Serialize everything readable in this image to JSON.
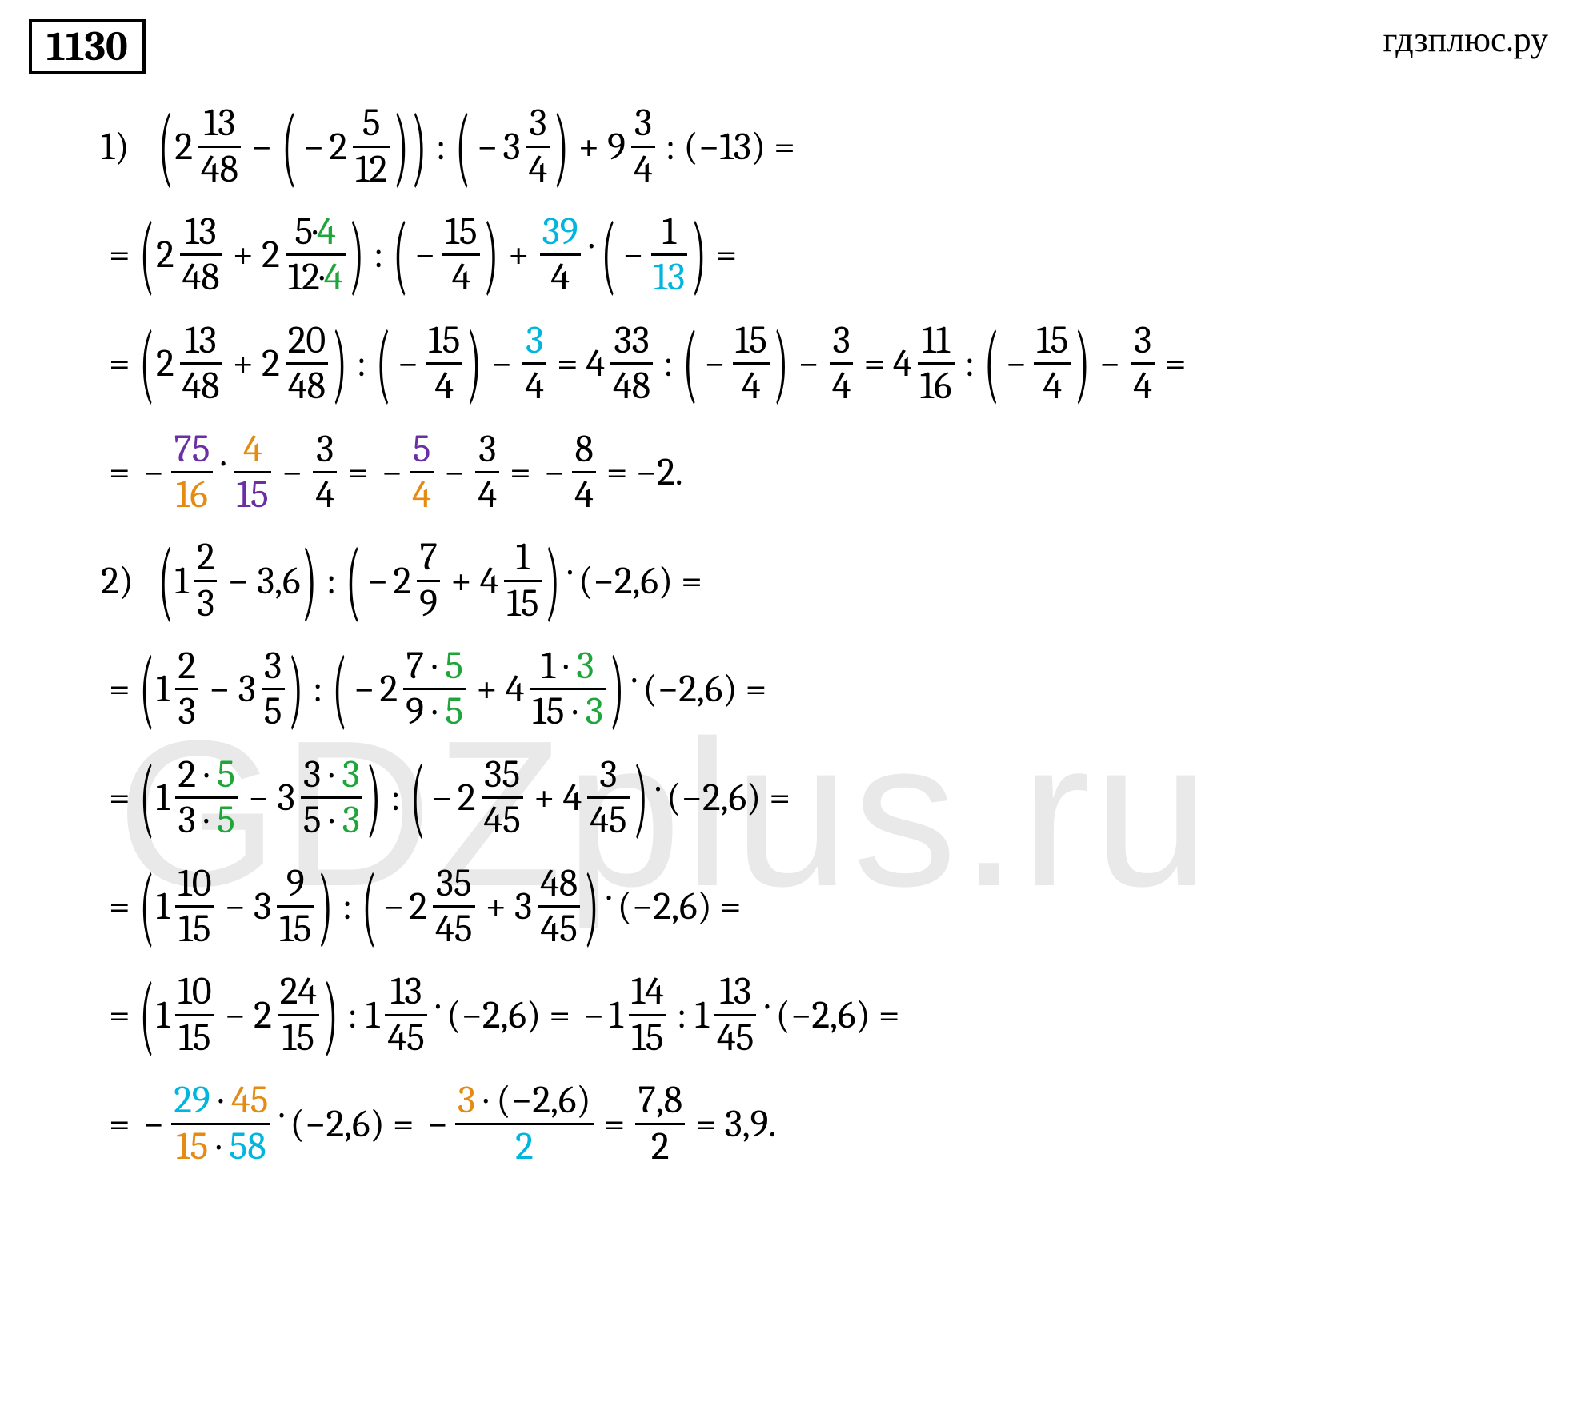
{
  "header": {
    "problem_number": "1130",
    "site": "гдзплюс.ру"
  },
  "watermark": "GDZplus.ru",
  "colors": {
    "green": "#1fa63a",
    "cyan": "#00b6de",
    "orange": "#e58a12",
    "purple": "#6a2fa4",
    "text": "#000000",
    "bg": "#ffffff"
  },
  "font": {
    "family": "Cambria / Georgia serif",
    "base_size_pt": 36
  },
  "items": {
    "p1": {
      "label": "1)",
      "l1": {
        "mix_a_whole": "2",
        "mix_a_num": "13",
        "mix_a_den": "48",
        "mix_b_whole": "2",
        "mix_b_num": "5",
        "mix_b_den": "12",
        "mix_c_whole": "3",
        "mix_c_num": "3",
        "mix_c_den": "4",
        "mix_d_whole": "9",
        "mix_d_num": "3",
        "mix_d_den": "4",
        "k": "(−13)"
      },
      "l2": {
        "mix_a_whole": "2",
        "mix_a_num": "13",
        "mix_a_den": "48",
        "mix_b_whole": "2",
        "mix_b_num_a": "5",
        "mix_b_num_dot": "·",
        "mix_b_num_b": "4",
        "mix_b_den_a": "12",
        "mix_b_den_dot": "·",
        "mix_b_den_b": "4",
        "f_c_num": "15",
        "f_c_den": "4",
        "f_d_num": "39",
        "f_d_den": "4",
        "f_e_num": "1",
        "f_e_den": "13"
      },
      "l3": {
        "mix_a_whole": "2",
        "mix_a_num": "13",
        "mix_a_den": "48",
        "mix_b_whole": "2",
        "mix_b_num": "20",
        "mix_b_den": "48",
        "f_c_num": "15",
        "f_c_den": "4",
        "f_d_num": "3",
        "f_d_den": "4",
        "mix_e_whole": "4",
        "mix_e_num": "33",
        "mix_e_den": "48",
        "f_f_num": "15",
        "f_f_den": "4",
        "f_g_num": "3",
        "f_g_den": "4",
        "mix_h_whole": "4",
        "mix_h_num": "11",
        "mix_h_den": "16",
        "f_i_num": "15",
        "f_i_den": "4",
        "f_j_num": "3",
        "f_j_den": "4"
      },
      "l4": {
        "f_a_num": "75",
        "f_a_den": "16",
        "f_b_num": "4",
        "f_b_den": "15",
        "f_c_num": "3",
        "f_c_den": "4",
        "f_d_num": "5",
        "f_d_den": "4",
        "f_e_num": "3",
        "f_e_den": "4",
        "f_f_num": "8",
        "f_f_den": "4",
        "ans": "−2."
      }
    },
    "p2": {
      "label": "2)",
      "l1": {
        "mix_a_whole": "1",
        "mix_a_num": "2",
        "mix_a_den": "3",
        "dec_b": "3,6",
        "mix_c_whole": "2",
        "mix_c_num": "7",
        "mix_c_den": "9",
        "mix_d_whole": "4",
        "mix_d_num": "1",
        "mix_d_den": "15",
        "dec_e": "(−2,6)"
      },
      "l2": {
        "mix_a_whole": "1",
        "mix_a_num": "2",
        "mix_a_den": "3",
        "mix_b_whole": "3",
        "mix_b_num": "3",
        "mix_b_den": "5",
        "mix_c_whole": "2",
        "mix_c_num_a": "7",
        "mix_c_num_b": "5",
        "mix_c_den_a": "9",
        "mix_c_den_b": "5",
        "mix_d_whole": "4",
        "mix_d_num_a": "1",
        "mix_d_num_b": "3",
        "mix_d_den_a": "15",
        "mix_d_den_b": "3",
        "dec_e": "(−2,6)"
      },
      "l3": {
        "mix_a_whole": "1",
        "mix_a_num_a": "2",
        "mix_a_num_b": "5",
        "mix_a_den_a": "3",
        "mix_a_den_b": "5",
        "mix_b_whole": "3",
        "mix_b_num_a": "3",
        "mix_b_num_b": "3",
        "mix_b_den_a": "5",
        "mix_b_den_b": "3",
        "mix_c_whole": "2",
        "mix_c_num": "35",
        "mix_c_den": "45",
        "mix_d_whole": "4",
        "mix_d_num": "3",
        "mix_d_den": "45",
        "dec_e": "(−2,6)"
      },
      "l4": {
        "mix_a_whole": "1",
        "mix_a_num": "10",
        "mix_a_den": "15",
        "mix_b_whole": "3",
        "mix_b_num": "9",
        "mix_b_den": "15",
        "mix_c_whole": "2",
        "mix_c_num": "35",
        "mix_c_den": "45",
        "mix_d_whole": "3",
        "mix_d_num": "48",
        "mix_d_den": "45",
        "dec_e": "(−2,6)"
      },
      "l5": {
        "mix_a_whole": "1",
        "mix_a_num": "10",
        "mix_a_den": "15",
        "mix_b_whole": "2",
        "mix_b_num": "24",
        "mix_b_den": "15",
        "mix_c_whole": "1",
        "mix_c_num": "13",
        "mix_c_den": "45",
        "dec_d": "(−2,6)",
        "mix_e_whole": "1",
        "mix_e_num": "14",
        "mix_e_den": "15",
        "mix_f_whole": "1",
        "mix_f_num": "13",
        "mix_f_den": "45",
        "dec_g": "(−2,6)"
      },
      "l6": {
        "f_a_num_a": "29",
        "f_a_num_b": "45",
        "f_a_den_a": "15",
        "f_a_den_b": "58",
        "dec_b": "(−2,6)",
        "f_c_num_a": "3",
        "f_c_num_b": "(−2,6)",
        "f_c_den": "2",
        "f_d_num": "7,8",
        "f_d_den": "2",
        "ans": "3,9."
      }
    }
  },
  "symbols": {
    "mul": "·",
    "div": ":",
    "eq": "=",
    "minus": "−",
    "plus": "+"
  }
}
